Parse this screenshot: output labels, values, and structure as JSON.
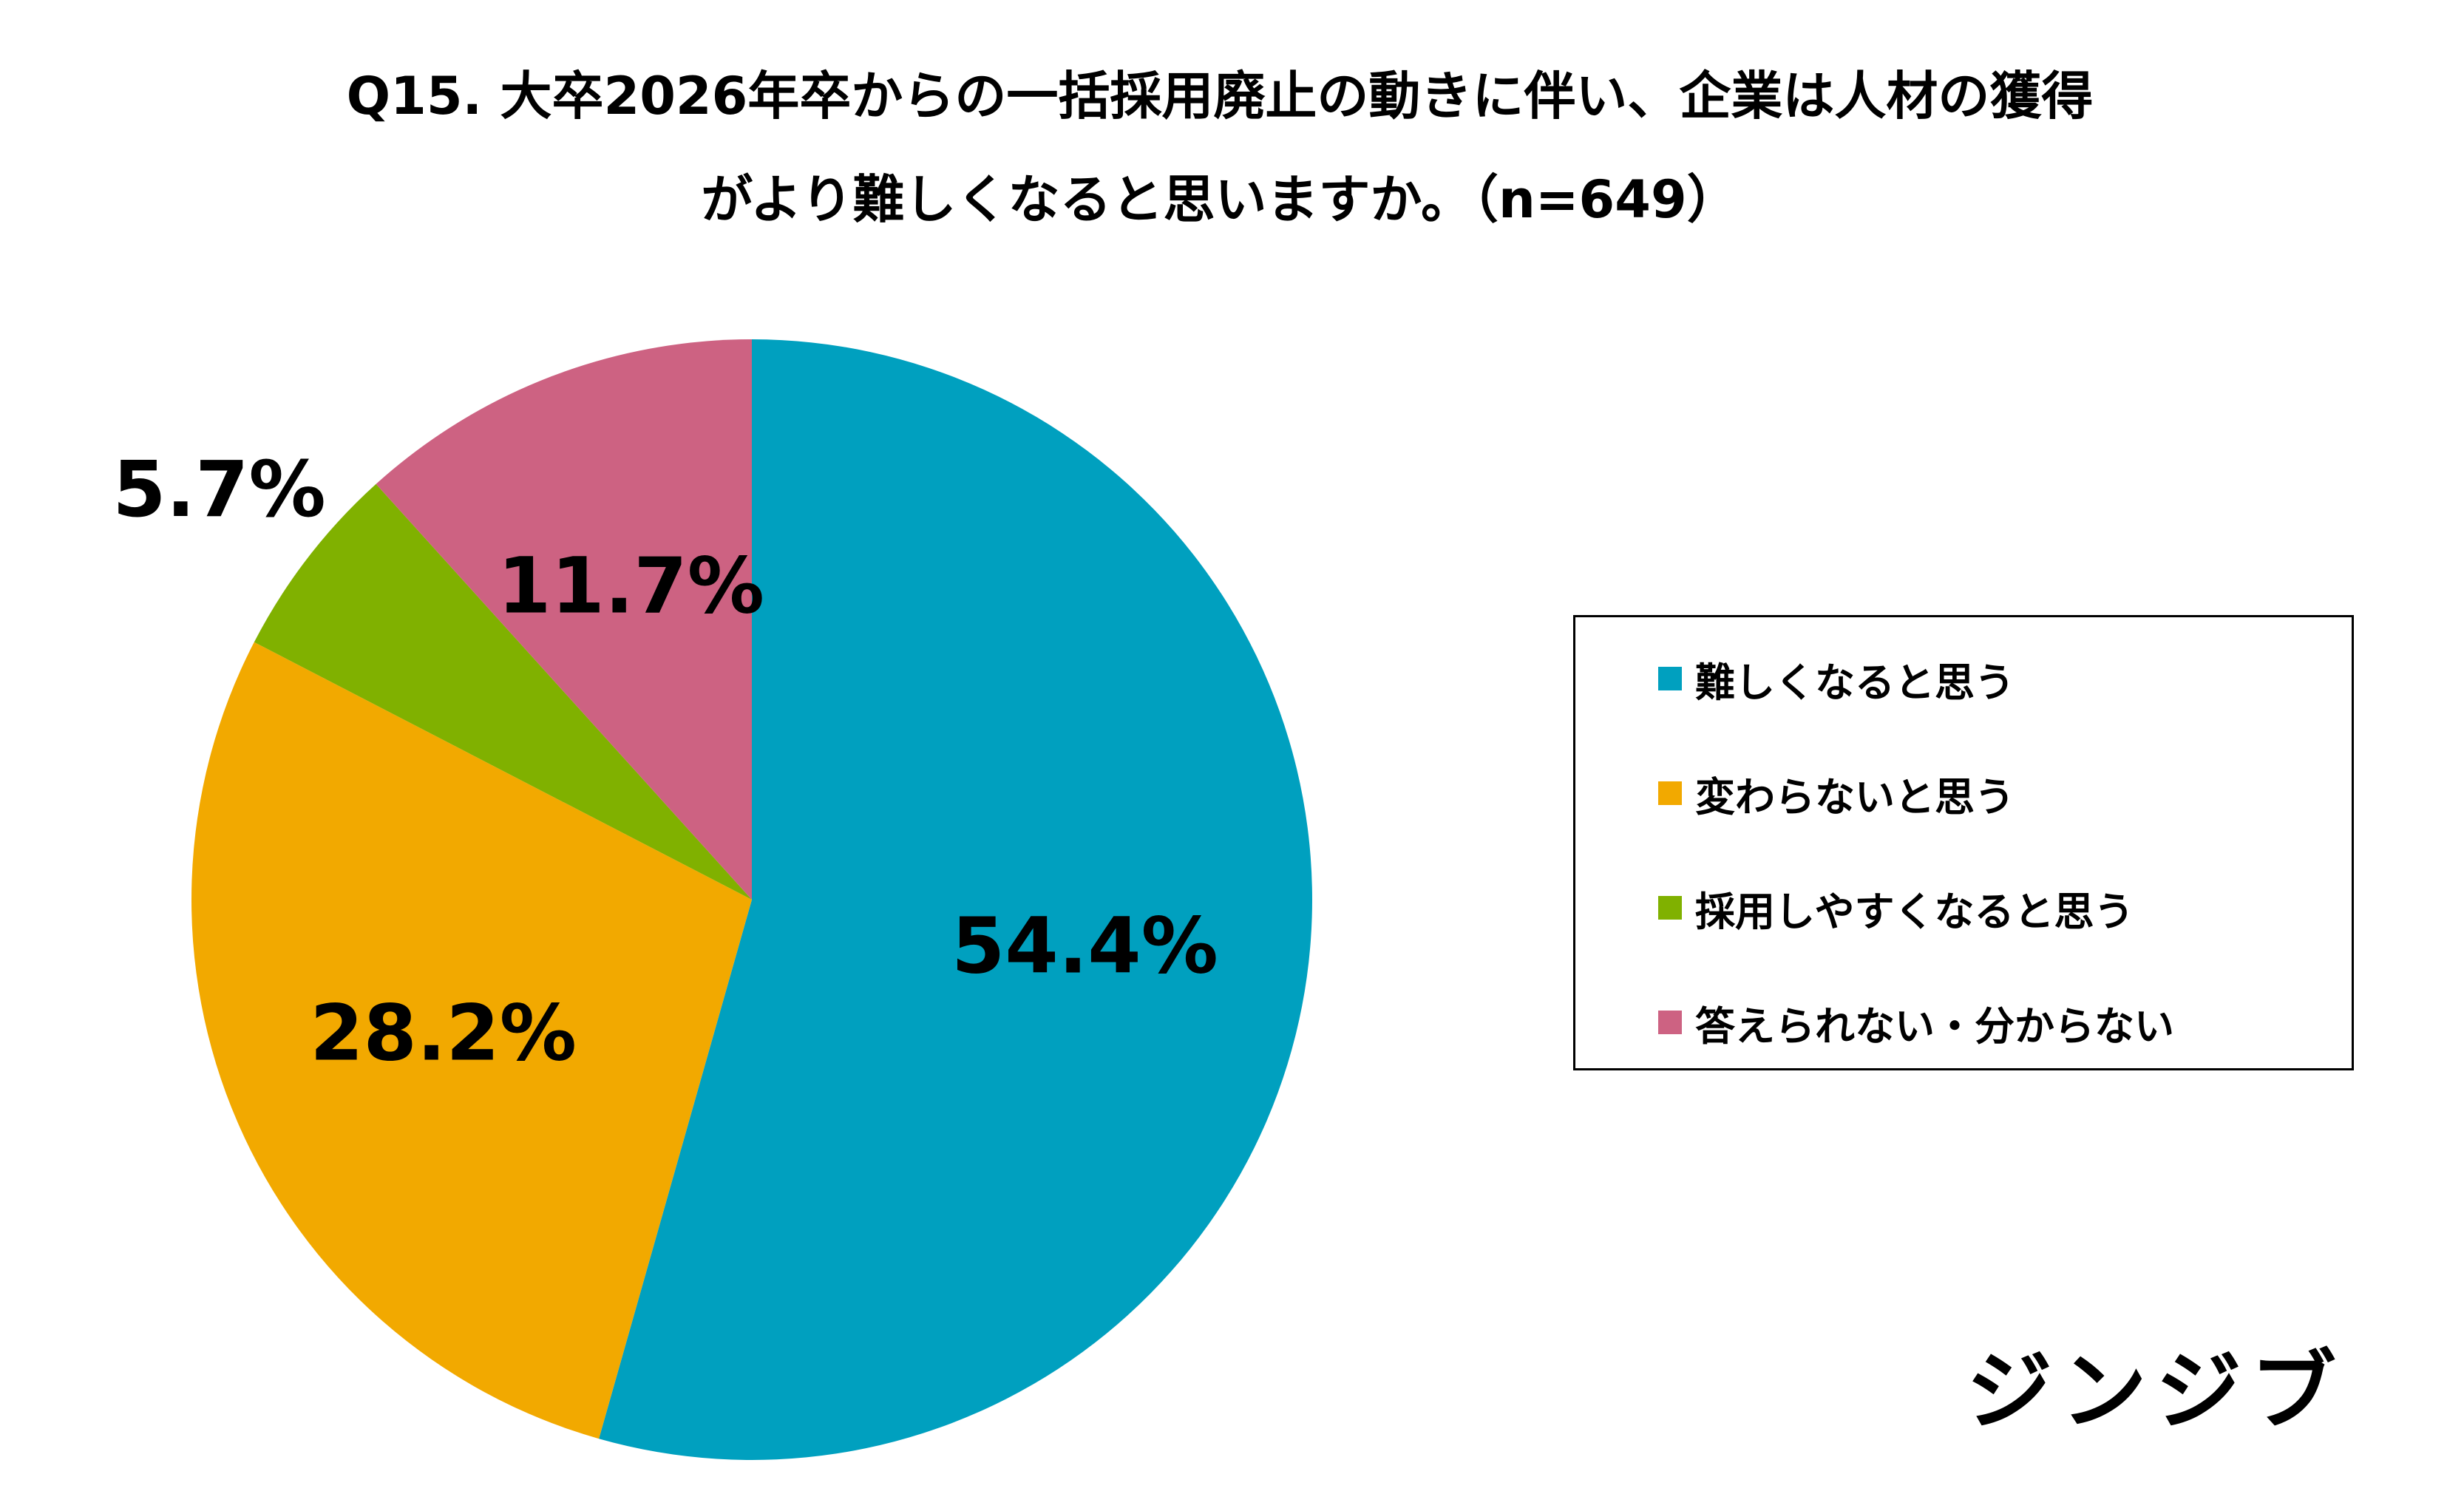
{
  "chart_data": {
    "type": "pie",
    "title": "Q15. 大卒2026年卒からの一括採用廃止の動きに伴い、企業は人材の獲得がより難しくなると思いますか。（n=649）",
    "title_lines": [
      "Q15. 大卒2026年卒からの一括採用廃止の動きに伴い、企業は人材の獲得",
      "がより難しくなると思いますか。（n=649）"
    ],
    "start_angle_deg": 0,
    "direction": "clockwise",
    "legend_position": "right",
    "slices": [
      {
        "label": "難しくなると思う",
        "value": 54.4,
        "display": "54.4%",
        "color": "#00A0BF",
        "label_placement": "inside"
      },
      {
        "label": "変わらないと思う",
        "value": 28.2,
        "display": "28.2%",
        "color": "#F2A900",
        "label_placement": "inside"
      },
      {
        "label": "採用しやすくなると思う",
        "value": 5.7,
        "display": "5.7%",
        "color": "#80B100",
        "label_placement": "outside"
      },
      {
        "label": "答えられない・分からない",
        "value": 11.7,
        "display": "11.7%",
        "color": "#CD6282",
        "label_placement": "inside"
      }
    ]
  },
  "brand": {
    "logo_text": "ジンジブ"
  }
}
